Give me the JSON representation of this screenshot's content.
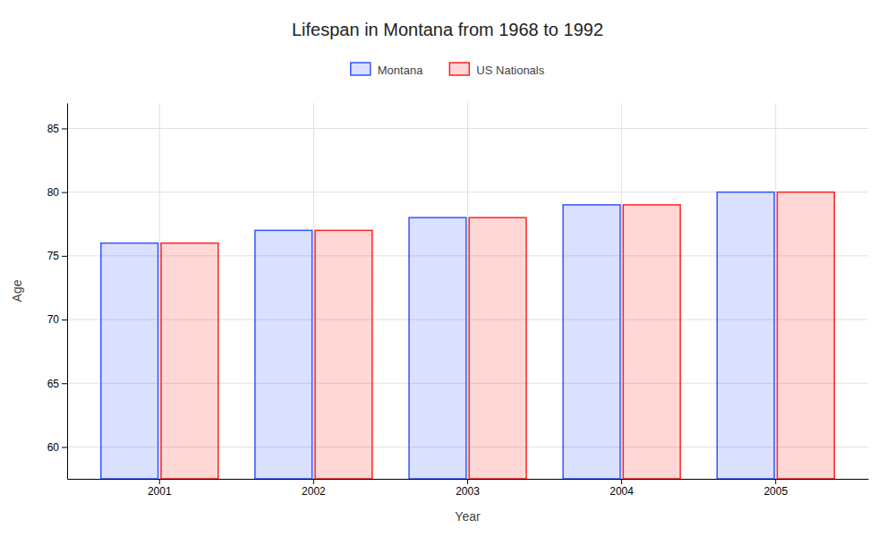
{
  "chart_data": {
    "type": "bar",
    "title": "Lifespan in Montana from 1968 to 1992",
    "xlabel": "Year",
    "ylabel": "Age",
    "categories": [
      "2001",
      "2002",
      "2003",
      "2004",
      "2005"
    ],
    "series": [
      {
        "name": "Montana",
        "color": "#3355ff",
        "values": [
          76,
          77,
          78,
          79,
          80
        ]
      },
      {
        "name": "US Nationals",
        "color": "#ff2222",
        "values": [
          76,
          77,
          78,
          79,
          80
        ]
      }
    ],
    "ylim": [
      57.5,
      87
    ],
    "yticks": [
      60,
      65,
      70,
      75,
      80,
      85
    ],
    "grid": true,
    "legend": "top"
  }
}
